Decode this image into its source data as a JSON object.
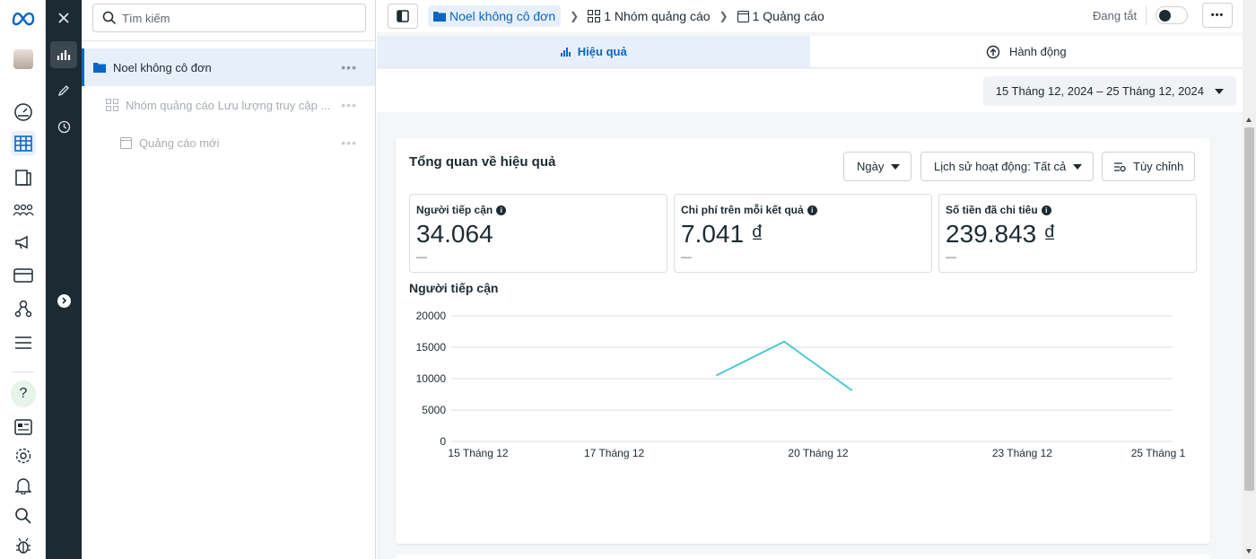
{
  "tree": {
    "search_placeholder": "Tìm kiếm",
    "items": [
      {
        "label": "Noel không cô đơn",
        "icon": "folder-icon"
      },
      {
        "label": "Nhóm quảng cáo Lưu lượng truy cập ...",
        "icon": "grid-icon"
      },
      {
        "label": "Quảng cáo mới",
        "icon": "ad-icon"
      }
    ]
  },
  "breadcrumb": {
    "campaign": "Noel không cô đơn",
    "adsets": "1 Nhóm quảng cáo",
    "ads": "1 Quảng cáo"
  },
  "status": {
    "label": "Đang tắt",
    "toggle_on": false
  },
  "tabs": [
    {
      "label": "Hiệu quả",
      "active": true
    },
    {
      "label": "Hành động",
      "active": false
    }
  ],
  "date_range": "15 Tháng 12, 2024 – 25 Tháng 12, 2024",
  "overview": {
    "title": "Tổng quan về hiệu quả",
    "period_select": "Ngày",
    "history_select": "Lịch sử hoạt động: Tất cả",
    "customize": "Tùy chỉnh"
  },
  "metrics": [
    {
      "title": "Người tiếp cận",
      "value": "34.064",
      "currency": "",
      "delta": "—"
    },
    {
      "title": "Chi phí trên mỗi kết quả",
      "value": "7.041",
      "currency": "₫",
      "delta": "—"
    },
    {
      "title": "Số tiền đã chi tiêu",
      "value": "239.843",
      "currency": "₫",
      "delta": "—"
    }
  ],
  "chart_data": {
    "type": "line",
    "title": "Người tiếp cận",
    "y_ticks": [
      "20000",
      "15000",
      "10000",
      "5000",
      "0"
    ],
    "x_ticks": [
      "15 Tháng 12",
      "17 Tháng 12",
      "20 Tháng 12",
      "23 Tháng 12",
      "25 Tháng 1"
    ],
    "ylim": [
      0,
      20000
    ],
    "x_domain_days": [
      15,
      25
    ],
    "series": [
      {
        "name": "",
        "color": "#4fc9cf",
        "points": [
          [
            18.5,
            10500
          ],
          [
            19.5,
            15900
          ],
          [
            20.5,
            8100
          ]
        ]
      }
    ]
  },
  "colors": {
    "accent": "#0a66c2",
    "dark": "#1c2b33"
  }
}
